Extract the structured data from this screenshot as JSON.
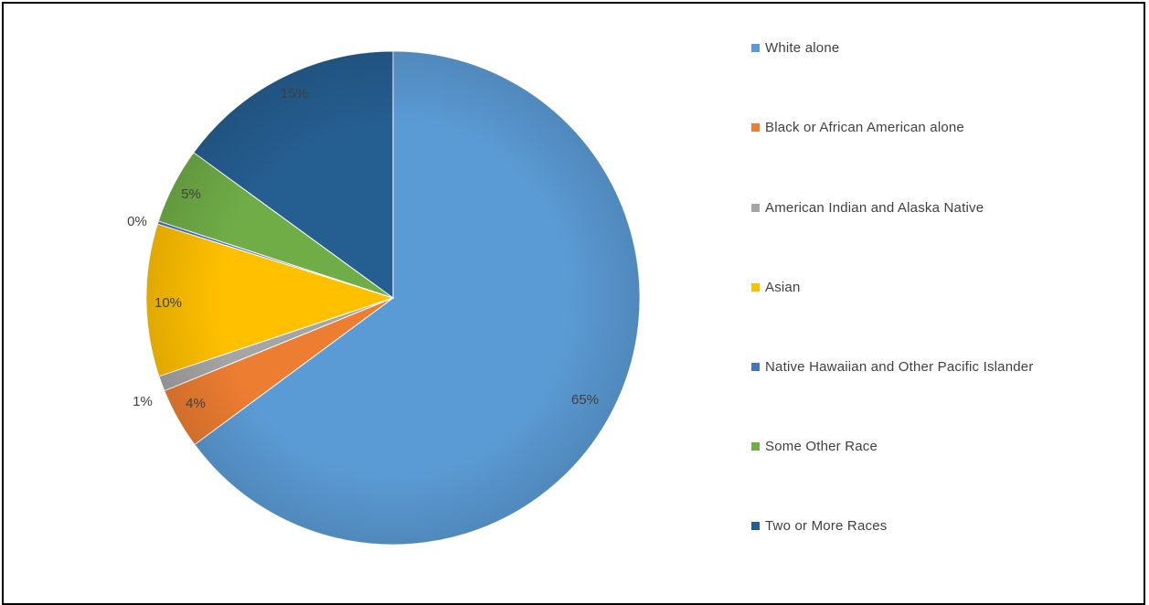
{
  "chart_data": {
    "type": "pie",
    "title": "",
    "slices": [
      {
        "label": "White alone",
        "value": 65,
        "display": "65%",
        "color": "#5b9bd5"
      },
      {
        "label": "Black or African American alone",
        "value": 4,
        "display": "4%",
        "color": "#ed7d31"
      },
      {
        "label": "American Indian and Alaska Native",
        "value": 1,
        "display": "1%",
        "color": "#a5a5a5"
      },
      {
        "label": "Asian",
        "value": 10,
        "display": "10%",
        "color": "#ffc000"
      },
      {
        "label": "Native Hawaiian and Other Pacific Islander",
        "value": 0.2,
        "display": "0%",
        "color": "#4472c4"
      },
      {
        "label": "Some Other Race",
        "value": 5,
        "display": "5%",
        "color": "#70ad47"
      },
      {
        "label": "Two or More Races",
        "value": 15,
        "display": "15%",
        "color": "#255e91"
      }
    ],
    "legend_position": "right"
  }
}
